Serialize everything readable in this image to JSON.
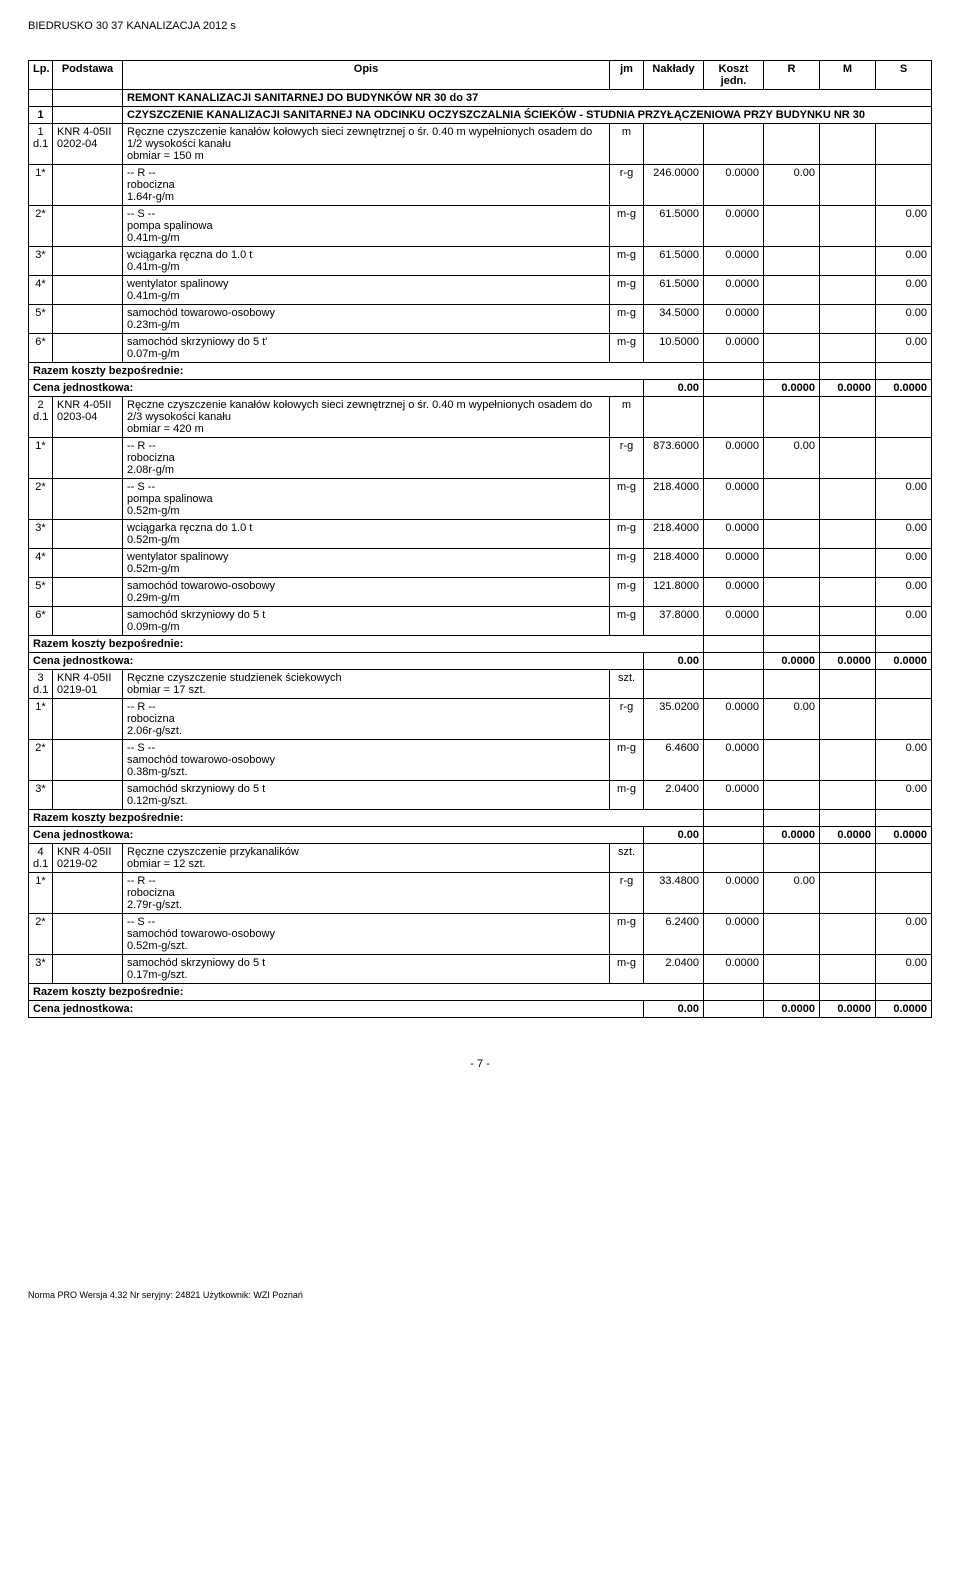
{
  "doc_title": "BIEDRUSKO 30 37 KANALIZACJA 2012 s",
  "columns": {
    "lp": "Lp.",
    "podstawa": "Podstawa",
    "opis": "Opis",
    "jm": "jm",
    "naklady": "Nakłady",
    "koszt_jedn": "Koszt jedn.",
    "r": "R",
    "m": "M",
    "s": "S"
  },
  "section_header": "REMONT KANALIZACJI SANITARNEJ DO BUDYNKÓW  NR 30 do 37",
  "sub_section": {
    "num": "1",
    "title": "CZYSZCZENIE KANALIZACJI SANITARNEJ NA ODCINKU OCZYSZCZALNIA ŚCIEKÓW - STUDNIA PRZYŁĄCZENIOWA PRZY BUDYNKU NR 30"
  },
  "labels": {
    "r_sep": "-- R --",
    "s_sep": "-- S --",
    "razem": "Razem koszty bezpośrednie:",
    "cena": "Cena jednostkowa:"
  },
  "items": [
    {
      "lp": "1",
      "lp2": "d.1",
      "podstawa": "KNR 4-05II 0202-04",
      "opis": "Ręczne czyszczenie kanałów kołowych sieci zewnętrznej o śr. 0.40 m wypełnionych osadem do 1/2 wysokości kanału",
      "obmiar": "obmiar  = 150 m",
      "jm": "m",
      "robocizna": {
        "star": "1*",
        "name": "robocizna",
        "jm": "r-g",
        "nak": "246.0000",
        "kj": "0.0000",
        "r": "0.00",
        "rate": "1.64r-g/m"
      },
      "s": [
        {
          "star": "2*",
          "name": "pompa spalinowa",
          "jm": "m-g",
          "nak": "61.5000",
          "kj": "0.0000",
          "s": "0.00",
          "rate": "0.41m-g/m"
        },
        {
          "star": "3*",
          "name": "wciągarka ręczna do 1.0 t",
          "jm": "m-g",
          "nak": "61.5000",
          "kj": "0.0000",
          "s": "0.00",
          "rate": "0.41m-g/m"
        },
        {
          "star": "4*",
          "name": "wentylator spalinowy",
          "jm": "m-g",
          "nak": "61.5000",
          "kj": "0.0000",
          "s": "0.00",
          "rate": "0.41m-g/m"
        },
        {
          "star": "5*",
          "name": "samochód towarowo-osobowy",
          "jm": "m-g",
          "nak": "34.5000",
          "kj": "0.0000",
          "s": "0.00",
          "rate": "0.23m-g/m"
        },
        {
          "star": "6*",
          "name": "samochód skrzyniowy do 5 t'",
          "jm": "m-g",
          "nak": "10.5000",
          "kj": "0.0000",
          "s": "0.00",
          "rate": "0.07m-g/m"
        }
      ],
      "cena_val": "0.00",
      "cena_r": "0.0000",
      "cena_m": "0.0000",
      "cena_s": "0.0000"
    },
    {
      "lp": "2",
      "lp2": "d.1",
      "podstawa": "KNR 4-05II 0203-04",
      "opis": "Ręczne czyszczenie kanałów kołowych sieci zewnętrznej o śr. 0.40 m wypełnionych osadem do 2/3 wysokości kanału",
      "obmiar": "obmiar  = 420 m",
      "jm": "m",
      "robocizna": {
        "star": "1*",
        "name": "robocizna",
        "jm": "r-g",
        "nak": "873.6000",
        "kj": "0.0000",
        "r": "0.00",
        "rate": "2.08r-g/m"
      },
      "s": [
        {
          "star": "2*",
          "name": "pompa spalinowa",
          "jm": "m-g",
          "nak": "218.4000",
          "kj": "0.0000",
          "s": "0.00",
          "rate": "0.52m-g/m"
        },
        {
          "star": "3*",
          "name": "wciągarka ręczna do 1.0 t",
          "jm": "m-g",
          "nak": "218.4000",
          "kj": "0.0000",
          "s": "0.00",
          "rate": "0.52m-g/m"
        },
        {
          "star": "4*",
          "name": "wentylator spalinowy",
          "jm": "m-g",
          "nak": "218.4000",
          "kj": "0.0000",
          "s": "0.00",
          "rate": "0.52m-g/m"
        },
        {
          "star": "5*",
          "name": "samochód towarowo-osobowy",
          "jm": "m-g",
          "nak": "121.8000",
          "kj": "0.0000",
          "s": "0.00",
          "rate": "0.29m-g/m"
        },
        {
          "star": "6*",
          "name": "samochód skrzyniowy do 5 t",
          "jm": "m-g",
          "nak": "37.8000",
          "kj": "0.0000",
          "s": "0.00",
          "rate": "0.09m-g/m"
        }
      ],
      "cena_val": "0.00",
      "cena_r": "0.0000",
      "cena_m": "0.0000",
      "cena_s": "0.0000"
    },
    {
      "lp": "3",
      "lp2": "d.1",
      "podstawa": "KNR 4-05II 0219-01",
      "opis": "Ręczne czyszczenie studzienek ściekowych",
      "obmiar": "obmiar  = 17 szt.",
      "jm": "szt.",
      "robocizna": {
        "star": "1*",
        "name": "robocizna",
        "jm": "r-g",
        "nak": "35.0200",
        "kj": "0.0000",
        "r": "0.00",
        "rate": "2.06r-g/szt."
      },
      "s": [
        {
          "star": "2*",
          "name": "samochód towarowo-osobowy",
          "jm": "m-g",
          "nak": "6.4600",
          "kj": "0.0000",
          "s": "0.00",
          "rate": "0.38m-g/szt."
        },
        {
          "star": "3*",
          "name": "samochód skrzyniowy do 5 t",
          "jm": "m-g",
          "nak": "2.0400",
          "kj": "0.0000",
          "s": "0.00",
          "rate": "0.12m-g/szt."
        }
      ],
      "cena_val": "0.00",
      "cena_r": "0.0000",
      "cena_m": "0.0000",
      "cena_s": "0.0000"
    },
    {
      "lp": "4",
      "lp2": "d.1",
      "podstawa": "KNR 4-05II 0219-02",
      "opis": "Ręczne czyszczenie przykanalików",
      "obmiar": "obmiar  = 12 szt.",
      "jm": "szt.",
      "robocizna": {
        "star": "1*",
        "name": "robocizna",
        "jm": "r-g",
        "nak": "33.4800",
        "kj": "0.0000",
        "r": "0.00",
        "rate": "2.79r-g/szt."
      },
      "s": [
        {
          "star": "2*",
          "name": "samochód towarowo-osobowy",
          "jm": "m-g",
          "nak": "6.2400",
          "kj": "0.0000",
          "s": "0.00",
          "rate": "0.52m-g/szt."
        },
        {
          "star": "3*",
          "name": "samochód skrzyniowy do 5 t",
          "jm": "m-g",
          "nak": "2.0400",
          "kj": "0.0000",
          "s": "0.00",
          "rate": "0.17m-g/szt."
        }
      ],
      "cena_val": "0.00",
      "cena_r": "0.0000",
      "cena_m": "0.0000",
      "cena_s": "0.0000"
    }
  ],
  "page_number": "- 7 -",
  "footer_text": "Norma PRO Wersja 4.32 Nr seryjny: 24821 Użytkownik: WZI Poznań"
}
